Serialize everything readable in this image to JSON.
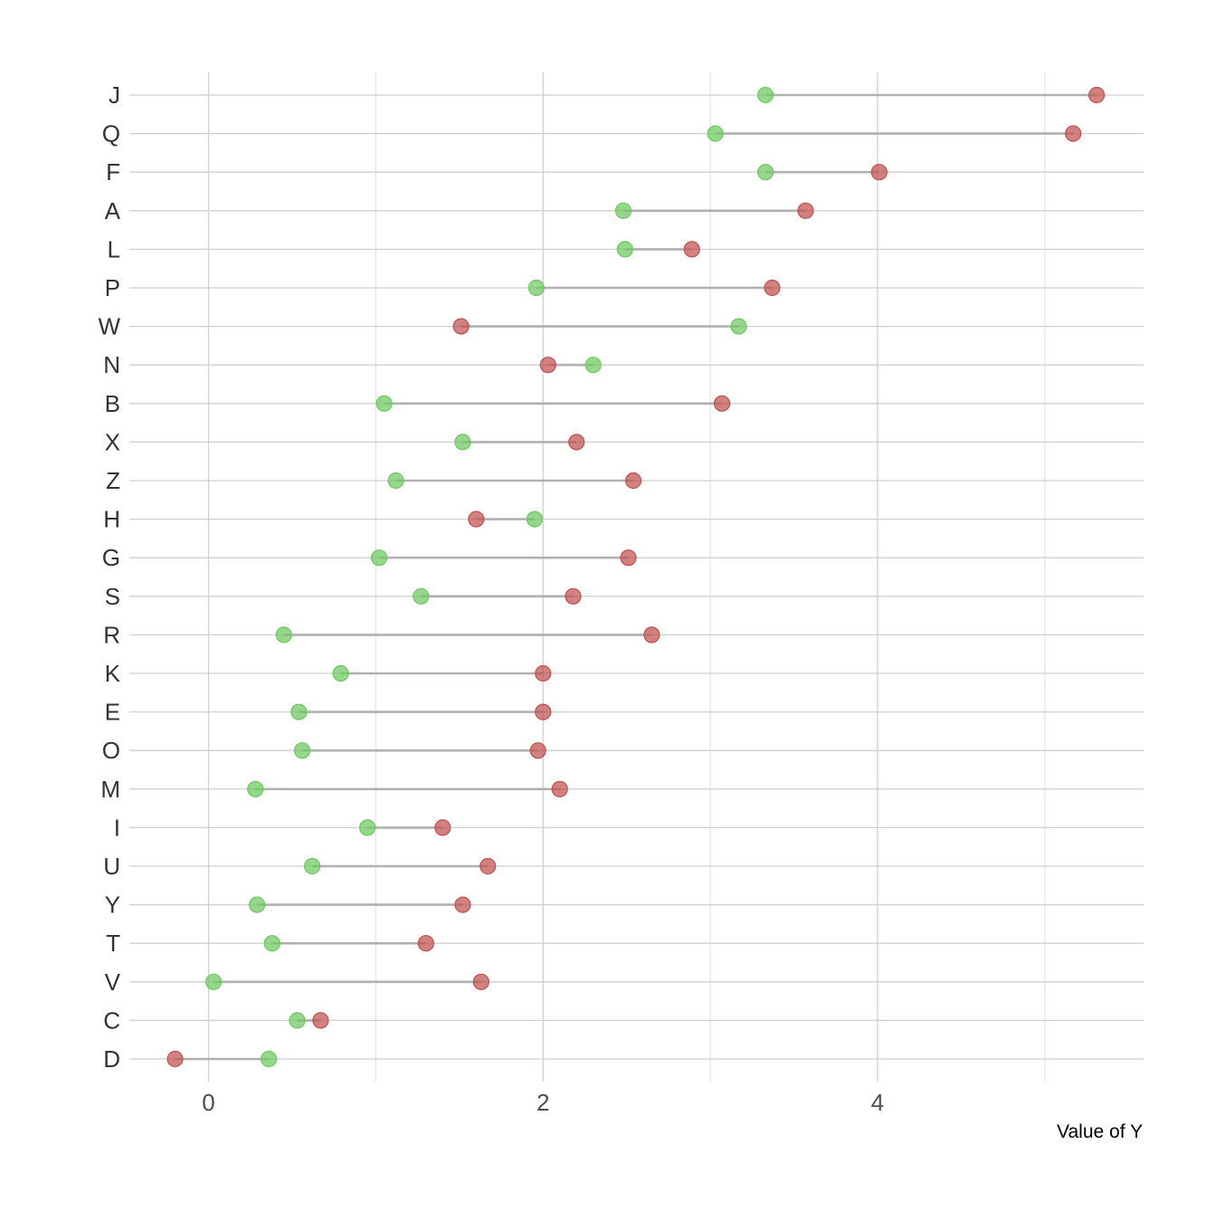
{
  "chart_data": {
    "type": "dumbbell",
    "title": "",
    "xlabel": "Value of Y",
    "ylabel": "",
    "xlim": [
      -0.5,
      5.6
    ],
    "xticks": [
      0,
      2,
      4
    ],
    "minor_xticks": [
      1,
      3,
      5
    ],
    "grid": true,
    "legend": "none",
    "colors": {
      "green": "#6cc95e",
      "red": "#c0504d",
      "segment": "#b0b0b0"
    },
    "categories": [
      "J",
      "Q",
      "F",
      "A",
      "L",
      "P",
      "W",
      "N",
      "B",
      "X",
      "Z",
      "H",
      "G",
      "S",
      "R",
      "K",
      "E",
      "O",
      "M",
      "I",
      "U",
      "Y",
      "T",
      "V",
      "C",
      "D"
    ],
    "series": [
      {
        "color": "green",
        "values": [
          3.33,
          3.03,
          3.33,
          2.48,
          2.49,
          1.96,
          3.17,
          2.3,
          1.05,
          1.52,
          1.12,
          1.95,
          1.02,
          1.27,
          0.45,
          0.79,
          0.54,
          0.56,
          0.28,
          0.95,
          0.62,
          0.29,
          0.38,
          0.03,
          0.53,
          0.36
        ]
      },
      {
        "color": "red",
        "values": [
          5.31,
          5.17,
          4.01,
          3.57,
          2.89,
          3.37,
          1.51,
          2.03,
          3.07,
          2.2,
          2.54,
          1.6,
          2.51,
          2.18,
          2.65,
          2.0,
          2.0,
          1.97,
          2.1,
          1.4,
          1.67,
          1.52,
          1.3,
          1.63,
          0.67,
          -0.2
        ]
      }
    ]
  }
}
